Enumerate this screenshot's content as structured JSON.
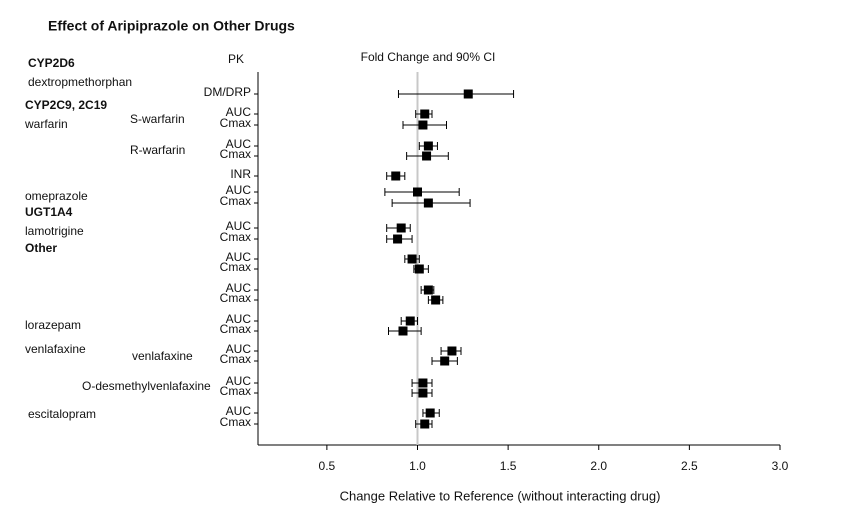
{
  "chart_data": {
    "type": "forest",
    "title": "Effect of Aripiprazole on Other Drugs",
    "pk_header": "PK",
    "ci_header": "Fold Change and 90% CI",
    "x_label": "Change Relative to Reference (without interacting drug)",
    "xlim": [
      0.12,
      3.0
    ],
    "xticks": [
      0.5,
      {
        "value": 1,
        "label": "1.0"
      },
      1.5,
      {
        "value": 2,
        "label": "2.0"
      },
      2.5,
      {
        "value": 3,
        "label": "3.0"
      }
    ],
    "reference_line": {
      "value": 1,
      "color": "#c8c8c8"
    },
    "color": "#000000",
    "labels": [
      {
        "text": "CYP2D6",
        "bold": true
      },
      {
        "text": "dextropmethorphan",
        "bold": false
      },
      {
        "text": "CYP2C9, 2C19",
        "bold": true
      },
      {
        "text": "warfarin",
        "bold": false
      },
      {
        "text": "S-warfarin",
        "bold": false
      },
      {
        "text": "R-warfarin",
        "bold": false
      },
      {
        "text": "omeprazole",
        "bold": false
      },
      {
        "text": "UGT1A4",
        "bold": true
      },
      {
        "text": "lamotrigine",
        "bold": false
      },
      {
        "text": "Other",
        "bold": true
      },
      {
        "text": "lorazepam",
        "bold": false
      },
      {
        "text": "venlafaxine",
        "bold": false
      },
      {
        "text": "venlafaxine",
        "bold": false
      },
      {
        "text": "O-desmethylvenlafaxine",
        "bold": false
      },
      {
        "text": "escitalopram",
        "bold": false
      }
    ],
    "rows": [
      {
        "pk": "DM/DRP",
        "estimate": 1.28,
        "ci": [
          0.895,
          1.53
        ]
      },
      {
        "pk": "AUC",
        "estimate": 1.04,
        "ci": [
          0.99,
          1.08
        ]
      },
      {
        "pk": "Cmax",
        "estimate": 1.03,
        "ci": [
          0.92,
          1.16
        ]
      },
      {
        "pk": "AUC",
        "estimate": 1.06,
        "ci": [
          1.01,
          1.11
        ]
      },
      {
        "pk": "Cmax",
        "estimate": 1.05,
        "ci": [
          0.94,
          1.17
        ]
      },
      {
        "pk": "INR",
        "estimate": 0.88,
        "ci": [
          0.83,
          0.93
        ]
      },
      {
        "pk": "AUC",
        "estimate": 1.0,
        "ci": [
          0.82,
          1.23
        ]
      },
      {
        "pk": "Cmax",
        "estimate": 1.06,
        "ci": [
          0.86,
          1.29
        ]
      },
      {
        "pk": "AUC",
        "estimate": 0.91,
        "ci": [
          0.83,
          0.96
        ]
      },
      {
        "pk": "Cmax",
        "estimate": 0.89,
        "ci": [
          0.83,
          0.97
        ]
      },
      {
        "pk": "AUC",
        "estimate": 0.97,
        "ci": [
          0.93,
          1.01
        ]
      },
      {
        "pk": "Cmax",
        "estimate": 1.01,
        "ci": [
          0.98,
          1.06
        ]
      },
      {
        "pk": "AUC",
        "estimate": 1.06,
        "ci": [
          1.02,
          1.09
        ]
      },
      {
        "pk": "Cmax",
        "estimate": 1.1,
        "ci": [
          1.06,
          1.14
        ]
      },
      {
        "pk": "AUC",
        "estimate": 0.96,
        "ci": [
          0.91,
          1.0
        ]
      },
      {
        "pk": "Cmax",
        "estimate": 0.92,
        "ci": [
          0.84,
          1.02
        ]
      },
      {
        "pk": "AUC",
        "estimate": 1.19,
        "ci": [
          1.13,
          1.24
        ]
      },
      {
        "pk": "Cmax",
        "estimate": 1.15,
        "ci": [
          1.08,
          1.22
        ]
      },
      {
        "pk": "AUC",
        "estimate": 1.03,
        "ci": [
          0.97,
          1.08
        ]
      },
      {
        "pk": "Cmax",
        "estimate": 1.03,
        "ci": [
          0.97,
          1.08
        ]
      },
      {
        "pk": "AUC",
        "estimate": 1.07,
        "ci": [
          1.03,
          1.12
        ]
      },
      {
        "pk": "Cmax",
        "estimate": 1.04,
        "ci": [
          0.99,
          1.08
        ]
      }
    ]
  }
}
